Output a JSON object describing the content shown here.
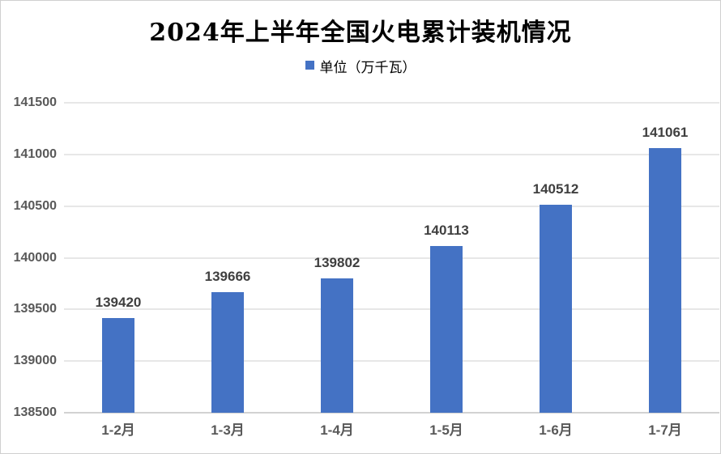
{
  "chart_data": {
    "type": "bar",
    "title": "2024年上半年全国火电累计装机情况",
    "legend": {
      "label": "单位（万千瓦）",
      "swatch_icon": "square-icon",
      "position": "top"
    },
    "categories": [
      "1-2月",
      "1-3月",
      "1-4月",
      "1-5月",
      "1-6月",
      "1-7月"
    ],
    "values": [
      139420,
      139666,
      139802,
      140113,
      140512,
      141061
    ],
    "y_ticks": [
      141500,
      141000,
      140500,
      140000,
      139500,
      139000,
      138500
    ],
    "ylim": [
      138500,
      141500
    ],
    "ytick_step": 500,
    "grid": true,
    "data_labels": true,
    "xlabel": "",
    "ylabel": ""
  },
  "colors": {
    "bar": "#4472c4",
    "legend_swatch": "#4472c4",
    "gridline": "#e7e7e7",
    "axis_line": "#d2d2d2",
    "axis_tick_label": "#595959",
    "value_label": "#3f3f3f",
    "title": "#000000",
    "border": "#cfcfcf",
    "background": "#ffffff"
  }
}
